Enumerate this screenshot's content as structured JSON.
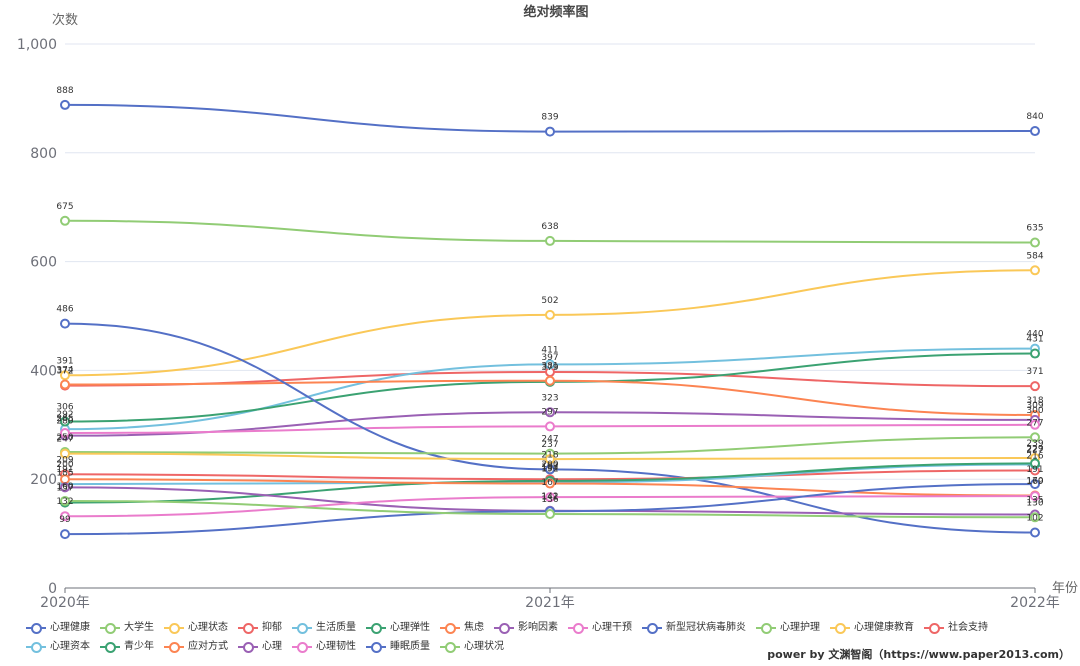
{
  "chart_data": {
    "type": "line",
    "title": "绝对频率图",
    "ylabel": "次数",
    "xlabel": "年份",
    "categories": [
      "2020年",
      "2021年",
      "2022年"
    ],
    "ylim": [
      0,
      1000
    ],
    "yticks": [
      0,
      200,
      400,
      600,
      800,
      1000
    ],
    "ytick_labels": [
      "0",
      "200",
      "400",
      "600",
      "800",
      "1,000"
    ],
    "series": [
      {
        "name": "心理健康",
        "color": "#5470c6",
        "values": [
          888,
          839,
          840
        ]
      },
      {
        "name": "大学生",
        "color": "#91cc75",
        "values": [
          675,
          638,
          635
        ]
      },
      {
        "name": "心理状态",
        "color": "#fac858",
        "values": [
          391,
          502,
          584
        ]
      },
      {
        "name": "抑郁",
        "color": "#ee6666",
        "values": [
          372,
          397,
          371
        ]
      },
      {
        "name": "生活质量",
        "color": "#73c0de",
        "values": [
          292,
          411,
          440
        ]
      },
      {
        "name": "心理弹性",
        "color": "#3ba272",
        "values": [
          306,
          379,
          431
        ]
      },
      {
        "name": "焦虑",
        "color": "#fc8452",
        "values": [
          374,
          381,
          318
        ]
      },
      {
        "name": "影响因素",
        "color": "#9a60b4",
        "values": [
          280,
          323,
          309
        ]
      },
      {
        "name": "心理干预",
        "color": "#ea7ccc",
        "values": [
          285,
          297,
          300
        ]
      },
      {
        "name": "新型冠状病毒肺炎",
        "color": "#5470c6",
        "values": [
          486,
          218,
          102
        ]
      },
      {
        "name": "心理护理",
        "color": "#91cc75",
        "values": [
          250,
          247,
          277
        ]
      },
      {
        "name": "心理健康教育",
        "color": "#fac858",
        "values": [
          247,
          237,
          239
        ]
      },
      {
        "name": "社会支持",
        "color": "#ee6666",
        "values": [
          209,
          200,
          216
        ]
      },
      {
        "name": "心理资本",
        "color": "#73c0de",
        "values": [
          191,
          194,
          227
        ]
      },
      {
        "name": "青少年",
        "color": "#3ba272",
        "values": [
          157,
          197,
          229
        ]
      },
      {
        "name": "应对方式",
        "color": "#fc8452",
        "values": [
          200,
          192,
          170
        ]
      },
      {
        "name": "心理",
        "color": "#9a60b4",
        "values": [
          185,
          142,
          135
        ]
      },
      {
        "name": "心理韧性",
        "color": "#ea7ccc",
        "values": [
          132,
          167,
          169
        ]
      },
      {
        "name": "睡眠质量",
        "color": "#5470c6",
        "values": [
          99,
          141,
          191
        ]
      },
      {
        "name": "心理状况",
        "color": "#91cc75",
        "values": [
          160,
          136,
          130
        ]
      }
    ]
  },
  "footer": {
    "text": "power by 文渊智阁（https://www.paper2013.com）"
  }
}
